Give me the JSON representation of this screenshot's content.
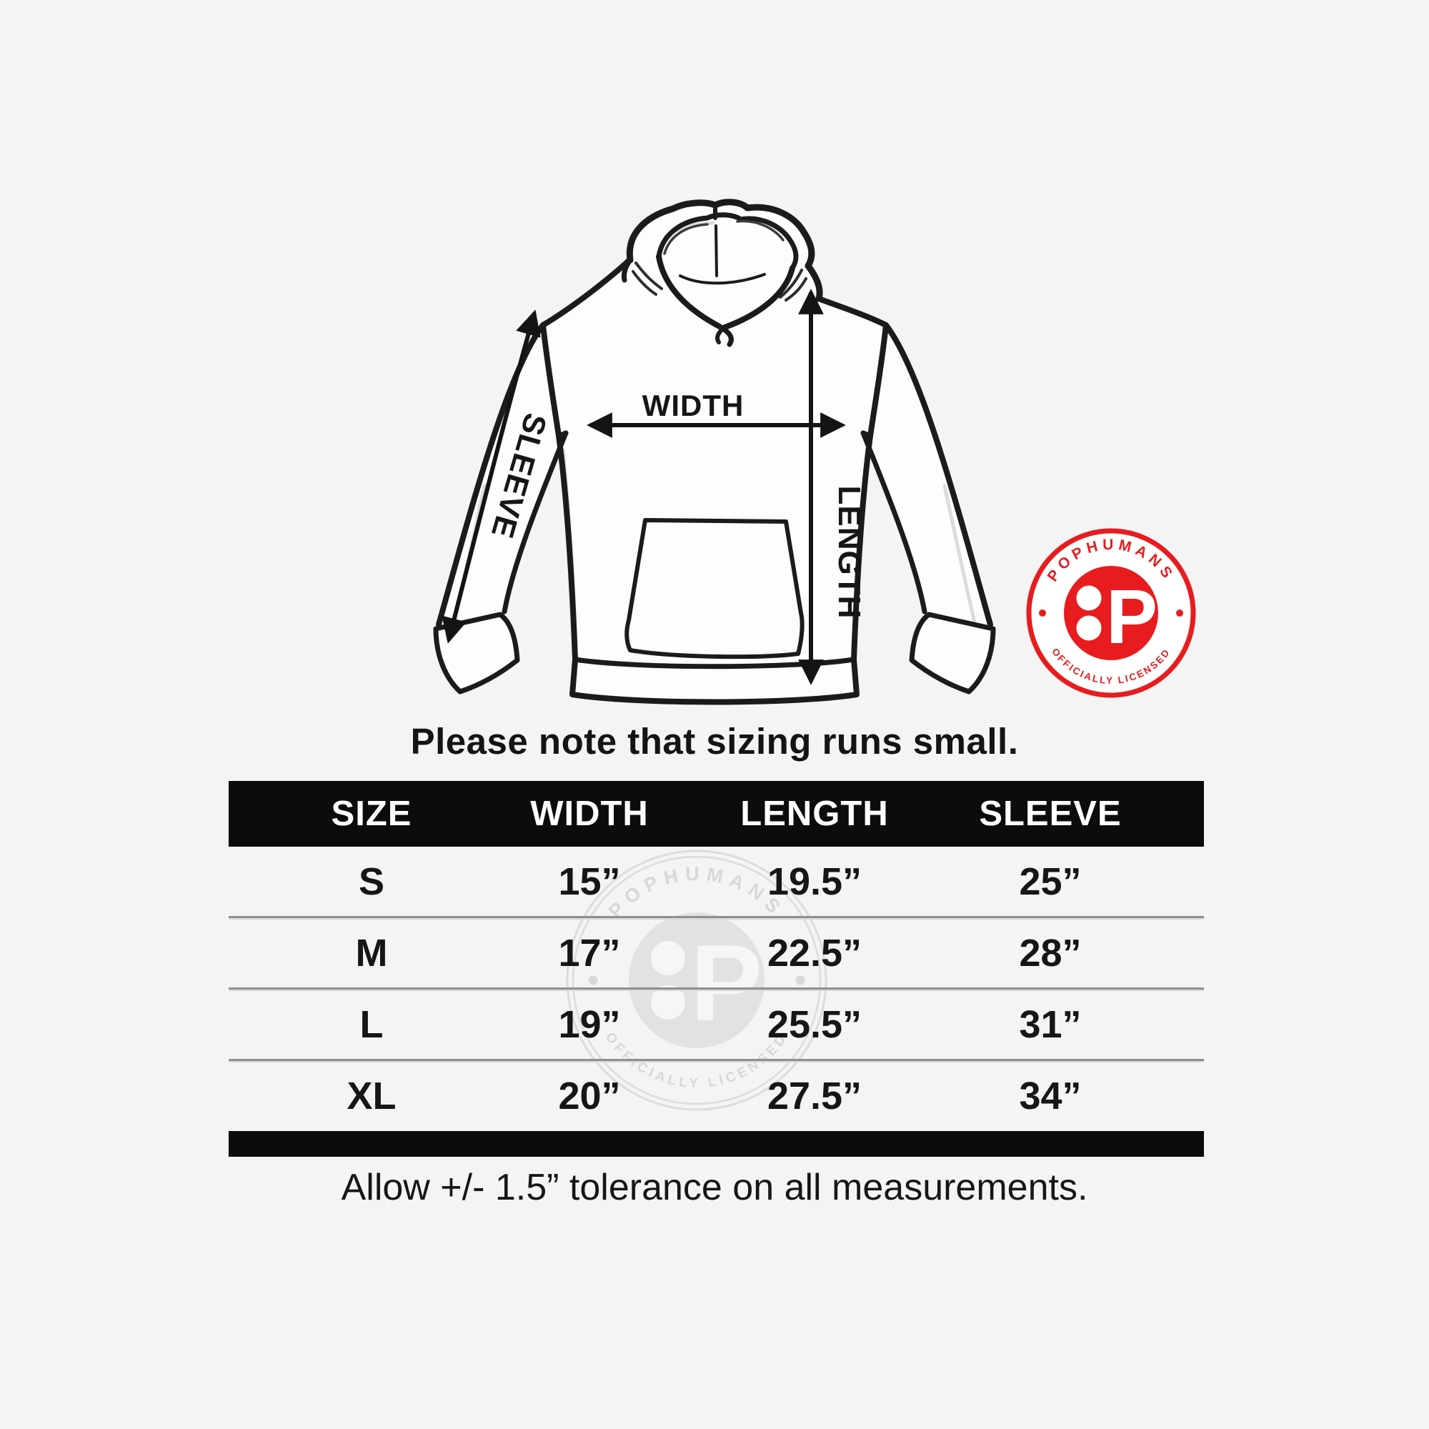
{
  "page": {
    "background": "#f4f4f4",
    "note": "Please note that sizing runs small.",
    "tolerance_note": "Allow +/- 1.5” tolerance on all measurements."
  },
  "diagram": {
    "width_label": "WIDTH",
    "length_label": "LENGTH",
    "sleeve_label": "SLEEVE"
  },
  "badge": {
    "brand": "POPHUMANS",
    "subtitle": "OFFICIALLY LICENSED",
    "monogram": "P",
    "red": "#e81c1e"
  },
  "watermark": {
    "brand": "POPHUMANS",
    "subtitle": "OFFICIALLY LICENSED",
    "monogram": "P"
  },
  "size_chart": {
    "header_bg": "#0c0c0c",
    "header_text_color": "#ffffff",
    "columns": [
      "SIZE",
      "WIDTH",
      "LENGTH",
      "SLEEVE"
    ],
    "rows": [
      {
        "size": "S",
        "width": "15”",
        "length": "19.5”",
        "sleeve": "25”"
      },
      {
        "size": "M",
        "width": "17”",
        "length": "22.5”",
        "sleeve": "28”"
      },
      {
        "size": "L",
        "width": "19”",
        "length": "25.5”",
        "sleeve": "31”"
      },
      {
        "size": "XL",
        "width": "20”",
        "length": "27.5”",
        "sleeve": "34”"
      }
    ]
  },
  "chart_data": {
    "type": "table",
    "title": "Please note that sizing runs small.",
    "columns": [
      "SIZE",
      "WIDTH",
      "LENGTH",
      "SLEEVE"
    ],
    "rows": [
      [
        "S",
        "15”",
        "19.5”",
        "25”"
      ],
      [
        "M",
        "17”",
        "22.5”",
        "28”"
      ],
      [
        "L",
        "19”",
        "25.5”",
        "31”"
      ],
      [
        "XL",
        "20”",
        "27.5”",
        "34”"
      ]
    ],
    "units": "inches",
    "footnote": "Allow +/- 1.5” tolerance on all measurements."
  }
}
